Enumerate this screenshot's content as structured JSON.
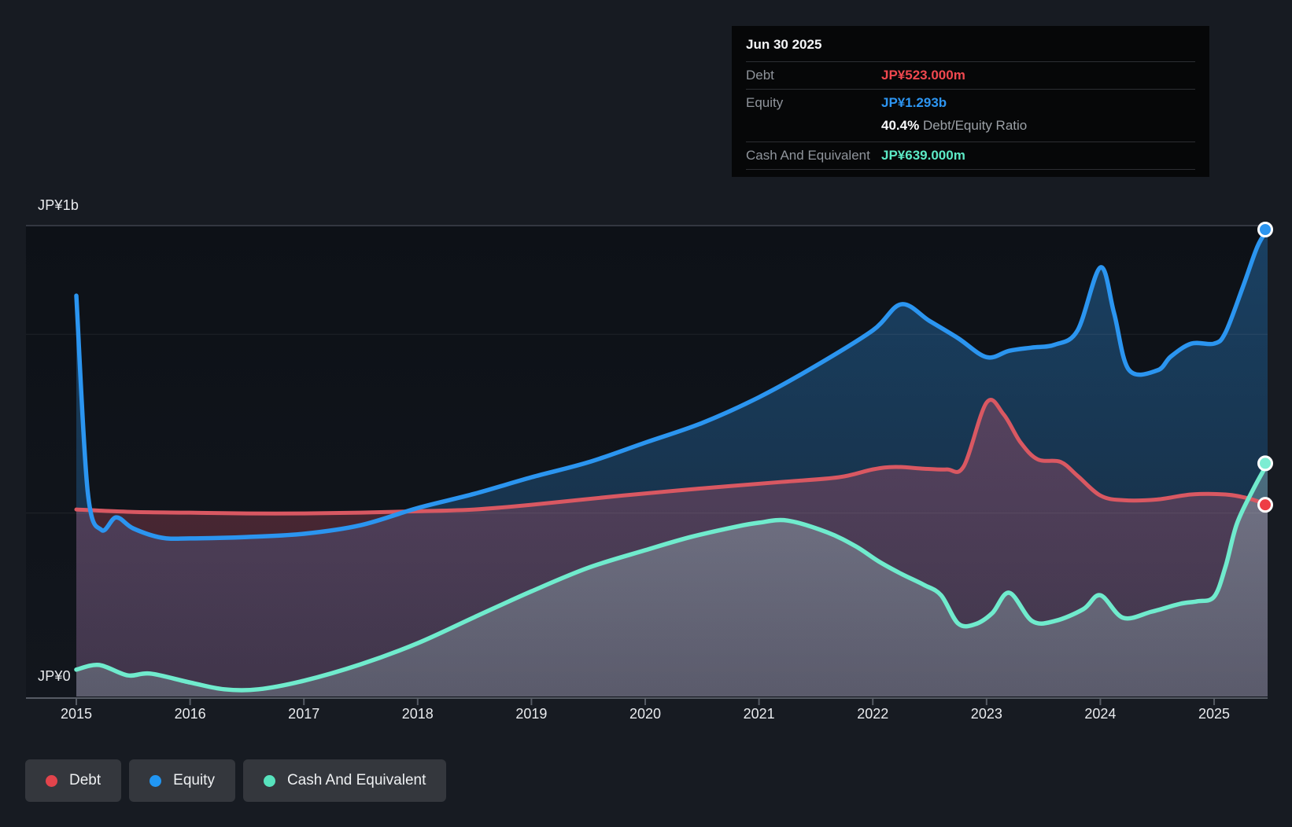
{
  "tooltip": {
    "date": "Jun 30 2025",
    "debt_label": "Debt",
    "debt_value": "JP¥523.000m",
    "equity_label": "Equity",
    "equity_value": "JP¥1.293b",
    "ratio_value": "40.4%",
    "ratio_label": "Debt/Equity Ratio",
    "cash_label": "Cash And Equivalent",
    "cash_value": "JP¥639.000m"
  },
  "y_axis": {
    "top_label": "JP¥1b",
    "zero_label": "JP¥0"
  },
  "x_axis": {
    "years": [
      2015,
      2016,
      2017,
      2018,
      2019,
      2020,
      2021,
      2022,
      2023,
      2024,
      2025
    ]
  },
  "legend": {
    "items": [
      {
        "id": "debt",
        "label": "Debt",
        "color": "#e2444c"
      },
      {
        "id": "equity",
        "label": "Equity",
        "color": "#2196f3"
      },
      {
        "id": "cash",
        "label": "Cash And Equivalent",
        "color": "#57e2bd"
      }
    ]
  },
  "colors": {
    "debt_line": "#d95862",
    "debt_dot": "#ee3d45",
    "debt_text": "#f0484f",
    "equity_line": "#2b95f0",
    "equity_dot": "#2b95f0",
    "equity_text": "#2d95f1",
    "cash_line": "#70ebcd",
    "cash_dot": "#7dedd3",
    "cash_text": "#5ce9c5",
    "grid_strong": "#3e434d",
    "grid_faint": "rgba(255,255,255,0.07)",
    "axis": "#565b64",
    "page_bg": "#171b22",
    "plot_bg": "#0e1218",
    "tooltip_bg": "#060708"
  },
  "chart_data": {
    "type": "area",
    "x_unit": "year",
    "x_range": [
      2015,
      2025.47
    ],
    "y_unit": "JP¥ millions",
    "ylim": [
      0,
      1304
    ],
    "grid_values": [
      500,
      1000
    ],
    "legend_position": "bottom-left",
    "series": [
      {
        "name": "Debt",
        "points": [
          [
            2015.0,
            510
          ],
          [
            2015.5,
            503
          ],
          [
            2016.0,
            501
          ],
          [
            2016.5,
            499
          ],
          [
            2017.0,
            499
          ],
          [
            2017.5,
            501
          ],
          [
            2018.0,
            505
          ],
          [
            2018.5,
            510
          ],
          [
            2019.0,
            523
          ],
          [
            2019.8,
            549
          ],
          [
            2020.5,
            569
          ],
          [
            2021.2,
            587
          ],
          [
            2021.7,
            600
          ],
          [
            2022.0,
            622
          ],
          [
            2022.2,
            629
          ],
          [
            2022.45,
            624
          ],
          [
            2022.65,
            622
          ],
          [
            2022.8,
            631
          ],
          [
            2023.0,
            809
          ],
          [
            2023.15,
            776
          ],
          [
            2023.3,
            697
          ],
          [
            2023.45,
            650
          ],
          [
            2023.65,
            643
          ],
          [
            2023.8,
            604
          ],
          [
            2024.0,
            549
          ],
          [
            2024.2,
            536
          ],
          [
            2024.5,
            538
          ],
          [
            2024.8,
            552
          ],
          [
            2025.1,
            552
          ],
          [
            2025.3,
            541
          ],
          [
            2025.47,
            523
          ]
        ]
      },
      {
        "name": "Equity",
        "points": [
          [
            2015.0,
            1108
          ],
          [
            2015.1,
            560
          ],
          [
            2015.22,
            453
          ],
          [
            2015.35,
            488
          ],
          [
            2015.5,
            457
          ],
          [
            2015.75,
            431
          ],
          [
            2016.0,
            429
          ],
          [
            2016.5,
            433
          ],
          [
            2017.0,
            442
          ],
          [
            2017.5,
            466
          ],
          [
            2018.0,
            514
          ],
          [
            2018.5,
            554
          ],
          [
            2019.0,
            600
          ],
          [
            2019.5,
            642
          ],
          [
            2020.0,
            697
          ],
          [
            2020.5,
            752
          ],
          [
            2021.0,
            824
          ],
          [
            2021.5,
            912
          ],
          [
            2022.0,
            1011
          ],
          [
            2022.25,
            1084
          ],
          [
            2022.5,
            1037
          ],
          [
            2022.75,
            989
          ],
          [
            2023.0,
            936
          ],
          [
            2023.2,
            954
          ],
          [
            2023.4,
            963
          ],
          [
            2023.6,
            971
          ],
          [
            2023.8,
            1011
          ],
          [
            2024.0,
            1187
          ],
          [
            2024.12,
            1060
          ],
          [
            2024.25,
            901
          ],
          [
            2024.5,
            899
          ],
          [
            2024.62,
            938
          ],
          [
            2024.8,
            974
          ],
          [
            2025.0,
            974
          ],
          [
            2025.1,
            1005
          ],
          [
            2025.25,
            1130
          ],
          [
            2025.38,
            1245
          ],
          [
            2025.47,
            1293
          ]
        ]
      },
      {
        "name": "Cash And Equivalent",
        "points": [
          [
            2015.0,
            62
          ],
          [
            2015.2,
            75
          ],
          [
            2015.45,
            46
          ],
          [
            2015.65,
            51
          ],
          [
            2016.0,
            26
          ],
          [
            2016.3,
            7
          ],
          [
            2016.6,
            7
          ],
          [
            2017.0,
            31
          ],
          [
            2017.5,
            77
          ],
          [
            2018.0,
            136
          ],
          [
            2018.5,
            209
          ],
          [
            2019.0,
            281
          ],
          [
            2019.5,
            347
          ],
          [
            2020.0,
            396
          ],
          [
            2020.4,
            433
          ],
          [
            2020.8,
            462
          ],
          [
            2021.0,
            473
          ],
          [
            2021.25,
            479
          ],
          [
            2021.6,
            446
          ],
          [
            2021.85,
            407
          ],
          [
            2022.05,
            365
          ],
          [
            2022.25,
            330
          ],
          [
            2022.45,
            299
          ],
          [
            2022.6,
            270
          ],
          [
            2022.75,
            191
          ],
          [
            2022.9,
            189
          ],
          [
            2023.05,
            220
          ],
          [
            2023.2,
            277
          ],
          [
            2023.4,
            198
          ],
          [
            2023.6,
            198
          ],
          [
            2023.85,
            231
          ],
          [
            2024.0,
            270
          ],
          [
            2024.2,
            207
          ],
          [
            2024.45,
            224
          ],
          [
            2024.7,
            246
          ],
          [
            2024.85,
            253
          ],
          [
            2025.0,
            266
          ],
          [
            2025.1,
            350
          ],
          [
            2025.2,
            470
          ],
          [
            2025.35,
            570
          ],
          [
            2025.47,
            639
          ]
        ]
      }
    ]
  }
}
